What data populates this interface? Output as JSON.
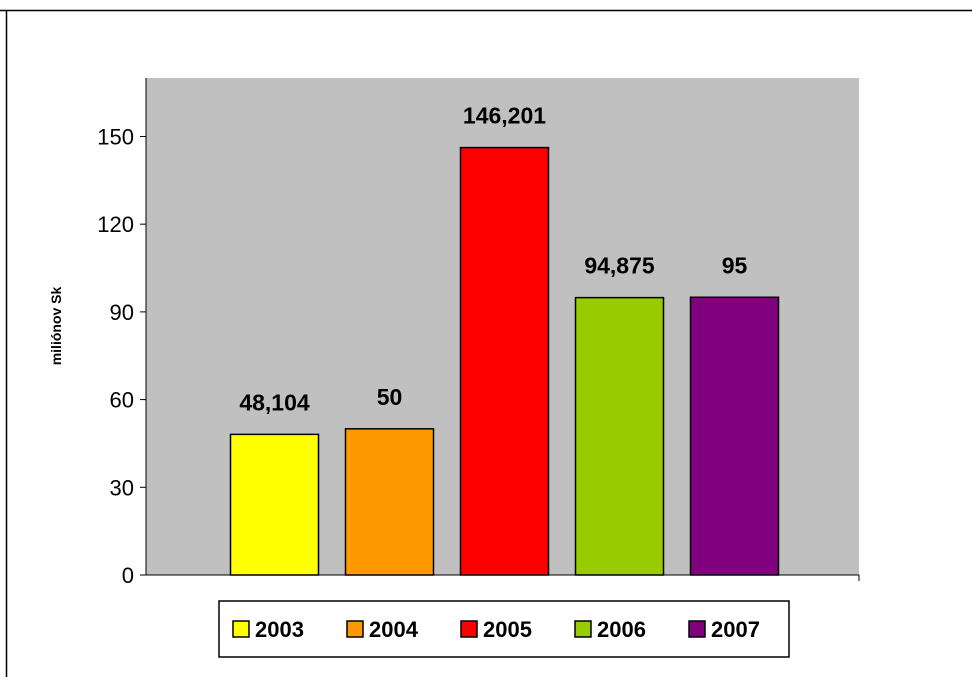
{
  "chart_data": {
    "type": "bar",
    "title": "",
    "xlabel": "",
    "ylabel": "miliónov Sk",
    "ylim": [
      0,
      170
    ],
    "yticks": [
      0,
      30,
      60,
      90,
      120,
      150
    ],
    "ytick_labels": [
      "0",
      "30",
      "60",
      "90",
      "120",
      "150"
    ],
    "categories": [
      "2003",
      "2004",
      "2005",
      "2006",
      "2007"
    ],
    "values": [
      48.104,
      50,
      146.201,
      94.875,
      95
    ],
    "data_labels": [
      "48,104",
      "50",
      "146,201",
      "94,875",
      "95"
    ],
    "colors": [
      "#ffff00",
      "#ff9900",
      "#ff0000",
      "#99cc00",
      "#800080"
    ],
    "plot_background": "#c0c0c0",
    "grid": false,
    "legend": {
      "placement": "bottom",
      "entries": [
        "2003",
        "2004",
        "2005",
        "2006",
        "2007"
      ]
    }
  }
}
